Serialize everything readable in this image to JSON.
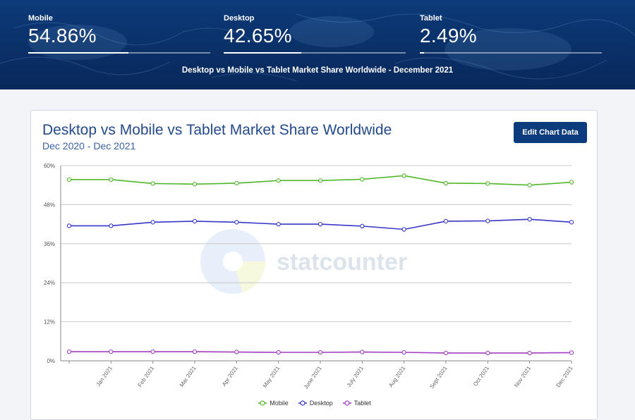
{
  "banner": {
    "stats": [
      {
        "label": "Mobile",
        "value": "54.86%",
        "fraction": 0.5486
      },
      {
        "label": "Desktop",
        "value": "42.65%",
        "fraction": 0.4265
      },
      {
        "label": "Tablet",
        "value": "2.49%",
        "fraction": 0.0249
      }
    ],
    "subtitle": "Desktop vs Mobile vs Tablet Market Share Worldwide - December 2021"
  },
  "card": {
    "edit_button_label": "Edit Chart Data",
    "watermark": "statcounter"
  },
  "colors": {
    "mobile": "#4fb82b",
    "desktop": "#3636c8",
    "tablet": "#a23cc4",
    "accent": "#0d3c7d"
  },
  "chart_data": {
    "type": "line",
    "title": "Desktop vs Mobile vs Tablet Market Share Worldwide",
    "subtitle": "Dec 2020 - Dec 2021",
    "categories": [
      "",
      "Jan 2021",
      "Feb 2021",
      "Mar 2021",
      "Apr 2021",
      "May 2021",
      "June 2021",
      "July 2021",
      "Aug 2021",
      "Sept 2021",
      "Oct 2021",
      "Nov 2021",
      "Dec 2021"
    ],
    "ylim": [
      0,
      60
    ],
    "yticks": [
      "0%",
      "12%",
      "24%",
      "36%",
      "48%",
      "60%"
    ],
    "ytick_values": [
      0,
      12,
      24,
      36,
      48,
      60
    ],
    "grid": true,
    "legend_position": "bottom",
    "series": [
      {
        "name": "Mobile",
        "color": "#4fb82b",
        "values": [
          55.7,
          55.7,
          54.5,
          54.3,
          54.6,
          55.4,
          55.4,
          55.8,
          56.9,
          54.6,
          54.5,
          54.0,
          54.9
        ]
      },
      {
        "name": "Desktop",
        "color": "#3636c8",
        "values": [
          41.5,
          41.5,
          42.6,
          42.9,
          42.6,
          42.0,
          42.0,
          41.4,
          40.4,
          42.9,
          43.0,
          43.5,
          42.6
        ]
      },
      {
        "name": "Tablet",
        "color": "#a23cc4",
        "values": [
          2.8,
          2.8,
          2.8,
          2.8,
          2.7,
          2.6,
          2.6,
          2.7,
          2.6,
          2.4,
          2.4,
          2.4,
          2.5
        ]
      }
    ]
  }
}
